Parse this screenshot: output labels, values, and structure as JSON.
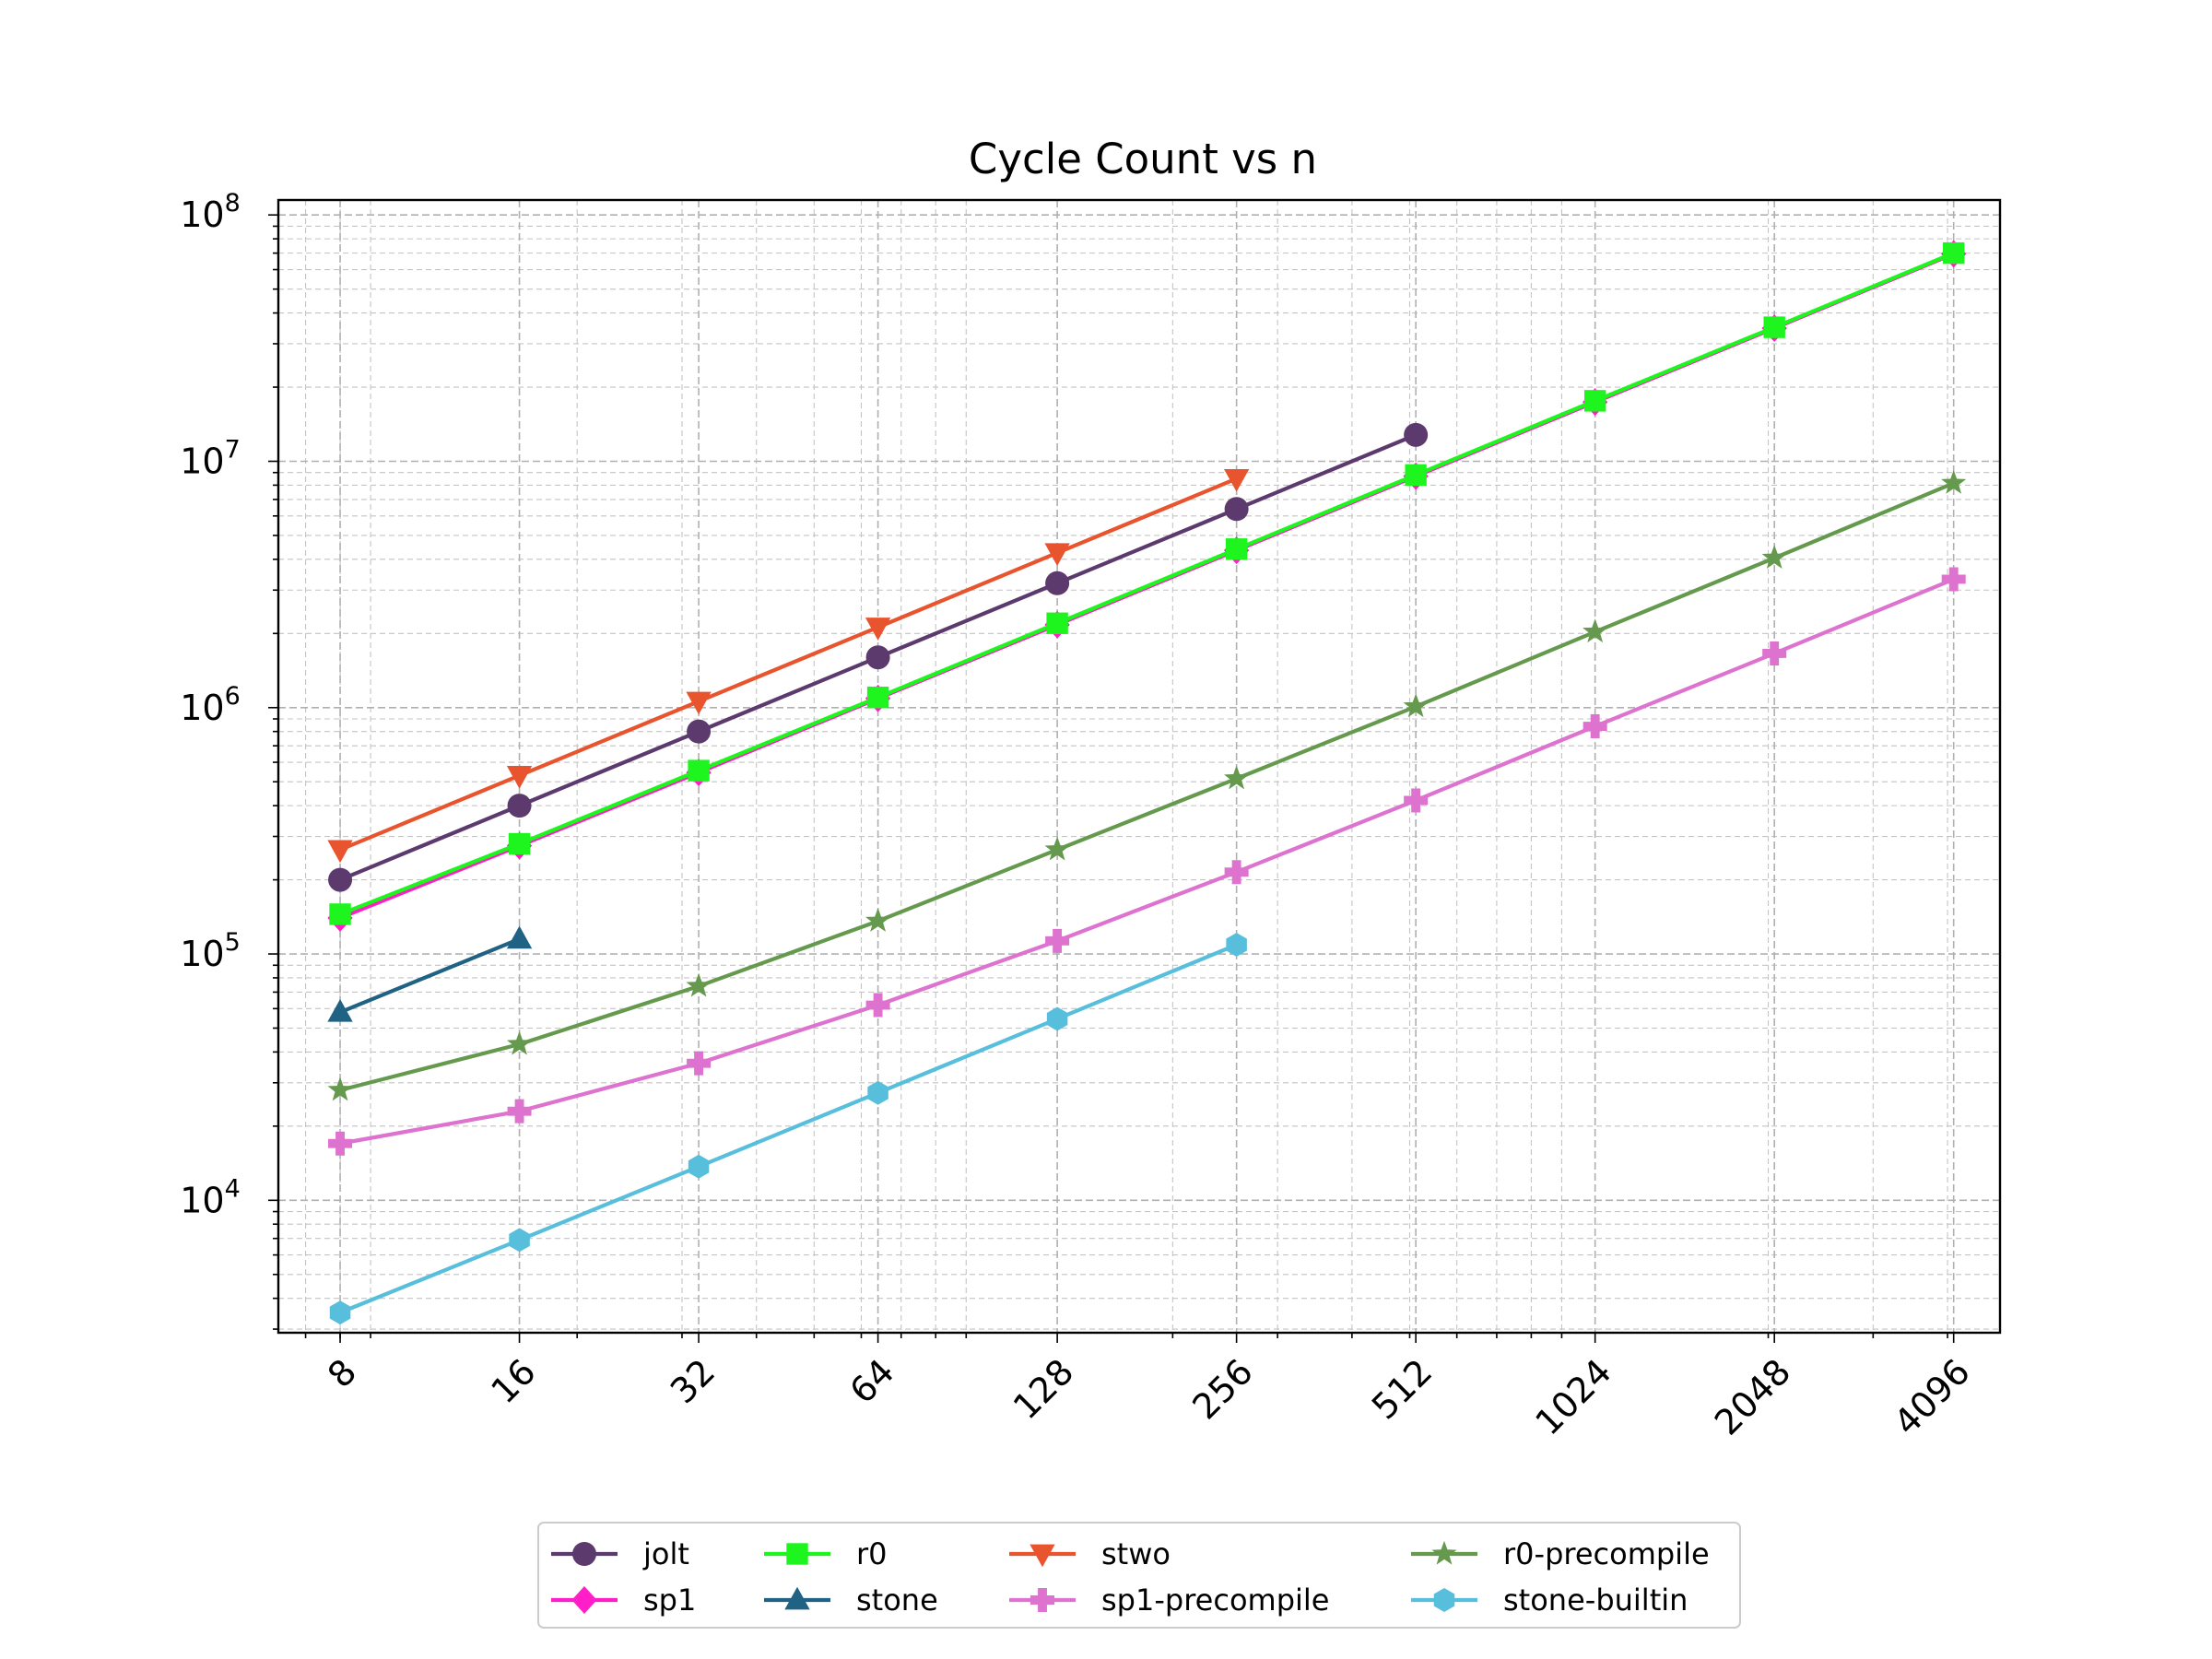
{
  "chart_data": {
    "type": "line",
    "title": "Cycle Count vs n",
    "xlabel": "",
    "ylabel": "",
    "x_scale": "log2",
    "y_scale": "log10",
    "grid": true,
    "legend_position": "below-center",
    "x": [
      8,
      16,
      32,
      64,
      128,
      256,
      512,
      1024,
      2048,
      4096
    ],
    "x_tick_labels": [
      "8",
      "16",
      "32",
      "64",
      "128",
      "256",
      "512",
      "1024",
      "2048",
      "4096"
    ],
    "y_tick_labels": [
      {
        "base": "10",
        "exp": "4"
      },
      {
        "base": "10",
        "exp": "5"
      },
      {
        "base": "10",
        "exp": "6"
      },
      {
        "base": "10",
        "exp": "7"
      },
      {
        "base": "10",
        "exp": "8"
      }
    ],
    "ylim": [
      2900,
      115000000
    ],
    "series": [
      {
        "name": "jolt",
        "color": "#5c3a6e",
        "marker": "circle",
        "x": [
          8,
          16,
          32,
          64,
          128,
          256,
          512
        ],
        "values": [
          200000,
          400000,
          800000,
          1600000,
          3200000,
          6400000,
          12800000
        ]
      },
      {
        "name": "sp1",
        "color": "#ff1ec8",
        "marker": "diamond",
        "x": [
          8,
          16,
          32,
          64,
          128,
          256,
          512,
          1024,
          2048,
          4096
        ],
        "values": [
          140000,
          275000,
          545000,
          1090000,
          2170000,
          4350000,
          8700000,
          17400000,
          34700000,
          69500000
        ]
      },
      {
        "name": "r0",
        "color": "#1ef51e",
        "marker": "square",
        "x": [
          8,
          16,
          32,
          64,
          128,
          256,
          512,
          1024,
          2048,
          4096
        ],
        "values": [
          145000,
          280000,
          555000,
          1100000,
          2200000,
          4400000,
          8800000,
          17600000,
          35000000,
          70000000
        ]
      },
      {
        "name": "stone",
        "color": "#1f6284",
        "marker": "triangle-up",
        "x": [
          8,
          16
        ],
        "values": [
          58000,
          115000
        ]
      },
      {
        "name": "stwo",
        "color": "#e8542e",
        "marker": "triangle-down",
        "x": [
          8,
          16,
          32,
          64,
          128,
          256
        ],
        "values": [
          265000,
          530000,
          1060000,
          2120000,
          4250000,
          8500000
        ]
      },
      {
        "name": "sp1-precompile",
        "color": "#dd72cf",
        "marker": "plus",
        "x": [
          8,
          16,
          32,
          64,
          128,
          256,
          512,
          1024,
          2048,
          4096
        ],
        "values": [
          17000,
          23000,
          36000,
          62000,
          113000,
          215000,
          420000,
          840000,
          1660000,
          3320000
        ]
      },
      {
        "name": "r0-precompile",
        "color": "#659a4e",
        "marker": "star",
        "x": [
          8,
          16,
          32,
          64,
          128,
          256,
          512,
          1024,
          2048,
          4096
        ],
        "values": [
          28000,
          43000,
          74000,
          136000,
          265000,
          515000,
          1010000,
          2030000,
          4050000,
          8150000
        ]
      },
      {
        "name": "stone-builtin",
        "color": "#57bfdc",
        "marker": "hexagon",
        "x": [
          8,
          16,
          32,
          64,
          128,
          256
        ],
        "values": [
          3500,
          6900,
          13700,
          27300,
          54500,
          109000
        ]
      }
    ],
    "legend_order": [
      "jolt",
      "sp1",
      "r0",
      "stone",
      "stwo",
      "sp1-precompile",
      "r0-precompile",
      "stone-builtin"
    ]
  }
}
